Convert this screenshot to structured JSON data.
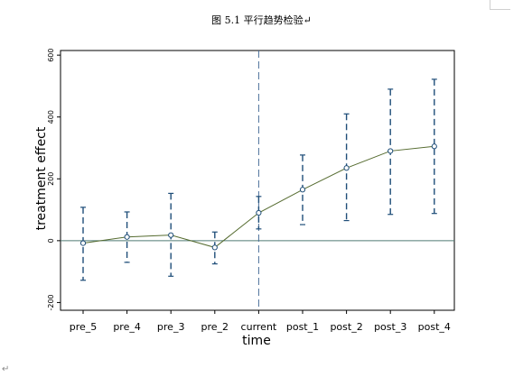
{
  "document": {
    "caption": "图 5.1   平行趋势检验↵",
    "paragraph_mark": "↵"
  },
  "chart_data": {
    "type": "line",
    "title": "",
    "xlabel": "time",
    "ylabel": "treatment effect",
    "categories": [
      "pre_5",
      "pre_4",
      "pre_3",
      "pre_2",
      "current",
      "post_1",
      "post_2",
      "post_3",
      "post_4"
    ],
    "y_ticks": [
      -200,
      0,
      200,
      400,
      600
    ],
    "ylim": [
      -225,
      615
    ],
    "estimates": [
      -8,
      12,
      18,
      -22,
      90,
      165,
      235,
      290,
      305
    ],
    "ci_lower": [
      -128,
      -70,
      -115,
      -75,
      38,
      52,
      65,
      85,
      88
    ],
    "ci_upper": [
      108,
      93,
      153,
      28,
      143,
      277,
      410,
      490,
      522
    ],
    "reference_line_y": 0,
    "event_line_category": "current",
    "grid": false,
    "legend": "none",
    "colors": {
      "line": "#556b2f",
      "ci": "#1f4e79",
      "marker": "#1f4e79",
      "reference": "#4f7a73",
      "event_line": "#4a6f9a"
    }
  }
}
